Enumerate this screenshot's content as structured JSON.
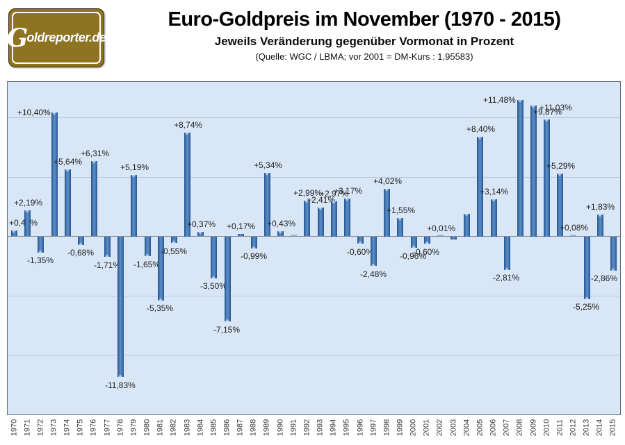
{
  "header": {
    "logo_g": "G",
    "logo_rest": "oldreporter.de",
    "title": "Euro-Goldpreis im November (1970 - 2015)",
    "subtitle": "Jeweils Veränderung gegenüber Vormonat in Prozent",
    "source": "(Quelle: WGC / LBMA; vor 2001 = DM-Kurs : 1,95583)"
  },
  "colors": {
    "plot_bg": "#d9e6f6",
    "bar_edge": "#24538b",
    "bar_center": "#5d90ca",
    "bar_tip": "#a9c6e8",
    "gridline": "#b9c8db",
    "zero_line": "#808f9f",
    "plot_border": "#5d6b7a",
    "logo_gold": "#8e7320",
    "tiny_bar": "#a8b6c9"
  },
  "chart_data": {
    "type": "bar",
    "title": "Euro-Goldpreis im November (1970 - 2015)",
    "subtitle": "Jeweils Veränderung gegenüber Vormonat in Prozent",
    "source": "(Quelle: WGC / LBMA; vor 2001 = DM-Kurs : 1,95583)",
    "xlabel": "",
    "ylabel": "",
    "ylim": [
      -15,
      13
    ],
    "gridlines": [
      10,
      5,
      0,
      -5,
      -10
    ],
    "grid_on": true,
    "legend": "none",
    "value_format": "german decimal comma, signed percent, two decimals",
    "points": [
      {
        "year": "1970",
        "value": 0.49,
        "label": "+0,49%"
      },
      {
        "year": "1971",
        "value": 2.19,
        "label": "+2,19%"
      },
      {
        "year": "1972",
        "value": -1.35,
        "label": "-1,35%"
      },
      {
        "year": "1973",
        "value": 10.4,
        "label": "+10,40%",
        "label_pos": "left"
      },
      {
        "year": "1974",
        "value": 5.64,
        "label": "+5,64%"
      },
      {
        "year": "1975",
        "value": -0.68,
        "label": "-0,68%"
      },
      {
        "year": "1976",
        "value": 6.31,
        "label": "+6,31%"
      },
      {
        "year": "1977",
        "value": -1.71,
        "label": "-1,71%"
      },
      {
        "year": "1978",
        "value": -11.83,
        "label": "-11,83%"
      },
      {
        "year": "1979",
        "value": 5.19,
        "label": "+5,19%"
      },
      {
        "year": "1980",
        "value": -1.65,
        "label": "-1,65%"
      },
      {
        "year": "1981",
        "value": -5.35,
        "label": "-5,35%"
      },
      {
        "year": "1982",
        "value": -0.55,
        "label": "-0,55%"
      },
      {
        "year": "1983",
        "value": 8.74,
        "label": "+8,74%"
      },
      {
        "year": "1984",
        "value": 0.37,
        "label": "+0,37%"
      },
      {
        "year": "1985",
        "value": -3.5,
        "label": "-3,50%"
      },
      {
        "year": "1986",
        "value": -7.15,
        "label": "-7,15%"
      },
      {
        "year": "1987",
        "value": 0.17,
        "label": "+0,17%"
      },
      {
        "year": "1988",
        "value": -0.99,
        "label": "-0,99%"
      },
      {
        "year": "1989",
        "value": 5.34,
        "label": "+5,34%"
      },
      {
        "year": "1990",
        "value": 0.43,
        "label": "+0,43%"
      },
      {
        "year": "1991",
        "value": 0.0,
        "label": ""
      },
      {
        "year": "1992",
        "value": 2.99,
        "label": "+2,99%"
      },
      {
        "year": "1993",
        "value": 2.41,
        "label": "+2,41%"
      },
      {
        "year": "1994",
        "value": 2.97,
        "label": "+2,97%"
      },
      {
        "year": "1995",
        "value": 3.17,
        "label": "+3,17%"
      },
      {
        "year": "1996",
        "value": -0.6,
        "label": "-0,60%"
      },
      {
        "year": "1997",
        "value": -2.48,
        "label": "-2,48%"
      },
      {
        "year": "1998",
        "value": 4.02,
        "label": "+4,02%"
      },
      {
        "year": "1999",
        "value": 1.55,
        "label": "+1,55%"
      },
      {
        "year": "2000",
        "value": -0.96,
        "label": "-0,96%"
      },
      {
        "year": "2001",
        "value": -0.6,
        "label": "-0,60%"
      },
      {
        "year": "2002",
        "value": 0.01,
        "label": "+0,01%"
      },
      {
        "year": "2003",
        "value": -0.25,
        "label": ""
      },
      {
        "year": "2004",
        "value": 1.9,
        "label": ""
      },
      {
        "year": "2005",
        "value": 8.4,
        "label": "+8,40%"
      },
      {
        "year": "2006",
        "value": 3.14,
        "label": "+3,14%"
      },
      {
        "year": "2007",
        "value": -2.81,
        "label": "-2,81%"
      },
      {
        "year": "2008",
        "value": 11.48,
        "label": "+11,48%",
        "label_pos": "left"
      },
      {
        "year": "2009",
        "value": 11.03,
        "label": "+11,03%",
        "label_pos": "right"
      },
      {
        "year": "2010",
        "value": 9.87,
        "label": "+9,87%"
      },
      {
        "year": "2011",
        "value": 5.29,
        "label": "+5,29%"
      },
      {
        "year": "2012",
        "value": 0.08,
        "label": "+0,08%"
      },
      {
        "year": "2013",
        "value": -5.25,
        "label": "-5,25%"
      },
      {
        "year": "2014",
        "value": 1.83,
        "label": "+1,83%"
      },
      {
        "year": "2015",
        "value": -2.86,
        "label": "-2,86%"
      }
    ]
  }
}
